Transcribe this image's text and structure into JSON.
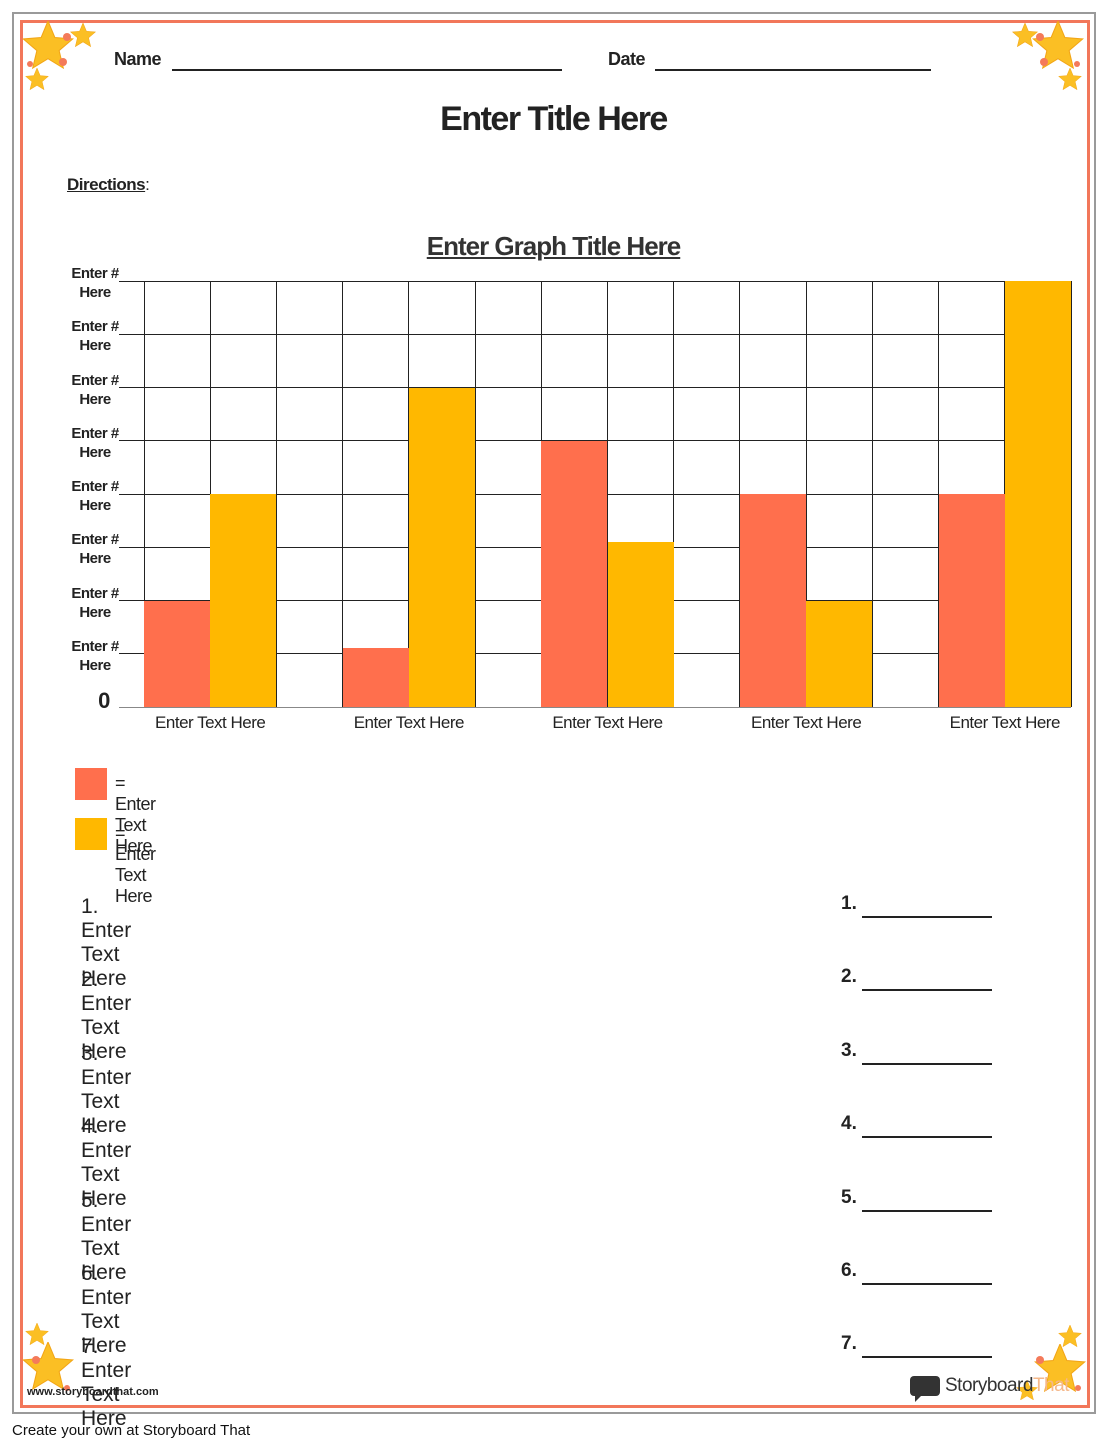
{
  "header": {
    "name_label": "Name",
    "date_label": "Date",
    "title": "Enter Title Here",
    "directions_label": "Directions",
    "directions_suffix": ":"
  },
  "chart_data": {
    "type": "bar",
    "title": "Enter Graph Title Here",
    "categories": [
      "Enter Text Here",
      "Enter Text Here",
      "Enter Text Here",
      "Enter Text Here",
      "Enter Text Here"
    ],
    "series": [
      {
        "name": "= Enter Text Here",
        "color": "#ff6f4d",
        "values": [
          2,
          1.1,
          5,
          4,
          4
        ]
      },
      {
        "name": "= Enter Text Here",
        "color": "#ffb800",
        "values": [
          4,
          6,
          3.1,
          2,
          8
        ]
      }
    ],
    "ylim": [
      0,
      8
    ],
    "yticks": [
      0,
      {
        "value": 1,
        "label": "Enter # Here"
      },
      {
        "value": 2,
        "label": "Enter # Here"
      },
      {
        "value": 3,
        "label": "Enter # Here"
      },
      {
        "value": 4,
        "label": "Enter # Here"
      },
      {
        "value": 5,
        "label": "Enter # Here"
      },
      {
        "value": 6,
        "label": "Enter # Here"
      },
      {
        "value": 7,
        "label": "Enter # Here"
      },
      {
        "value": 8,
        "label": "Enter # Here"
      }
    ],
    "grid": true
  },
  "questions": [
    {
      "text": "1. Enter Text Here",
      "answer": "1."
    },
    {
      "text": "2. Enter Text Here",
      "answer": "2."
    },
    {
      "text": "3. Enter Text Here",
      "answer": "3."
    },
    {
      "text": "4. Enter Text Here",
      "answer": "4."
    },
    {
      "text": "5. Enter Text Here",
      "answer": "5."
    },
    {
      "text": "6. Enter Text Here",
      "answer": "6."
    },
    {
      "text": "7. Enter Text Here",
      "answer": "7."
    }
  ],
  "footer": {
    "url": "www.storyboardthat.com",
    "logo_main": "Storyboard",
    "logo_accent": "That",
    "credit": "Create your own at Storyboard That"
  }
}
